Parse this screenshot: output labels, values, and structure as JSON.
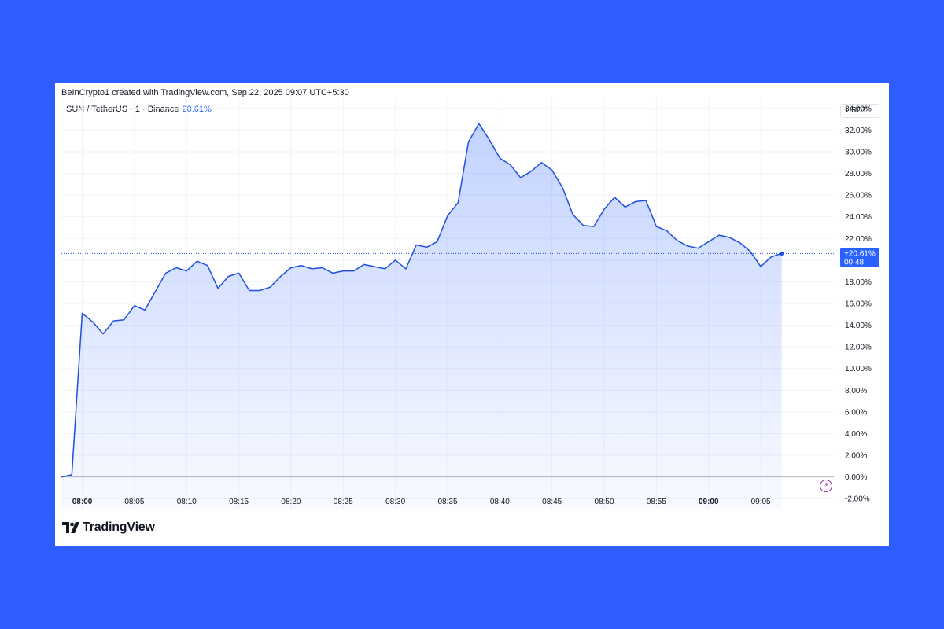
{
  "header": {
    "credit": "BeInCrypto1 created with TradingView.com, Sep 22, 2025 09:07 UTC+5:30",
    "symbol": "SUN / TetherUS · 1 · Binance",
    "change": "20.61%"
  },
  "price_axis": {
    "currency": "USDT"
  },
  "last_value": {
    "label": "+20.61%",
    "countdown": "00:48"
  },
  "footer": {
    "brand": "TradingView"
  },
  "colors": {
    "background": "#2e5eff",
    "line": "#1d4fe0",
    "fill": "#2962ff",
    "badge": "#2962ff",
    "zero_line": "#b2b5be",
    "grid": "#f0f3fa"
  },
  "icons": {
    "lightning": "lightning-icon",
    "logo": "tradingview-logo-icon"
  },
  "chart_data": {
    "type": "area",
    "ylabel": "",
    "ylim": [
      -3,
      35
    ],
    "y_ticks": [
      34,
      32,
      30,
      28,
      26,
      24,
      22,
      20,
      18,
      16,
      14,
      12,
      10,
      8,
      6,
      4,
      2,
      0,
      -2
    ],
    "y_tick_labels": [
      "34.00%",
      "32.00%",
      "30.00%",
      "28.00%",
      "26.00%",
      "24.00%",
      "22.00%",
      "20.00%",
      "18.00%",
      "16.00%",
      "14.00%",
      "12.00%",
      "10.00%",
      "8.00%",
      "6.00%",
      "4.00%",
      "2.00%",
      "0.00%",
      "-2.00%"
    ],
    "x_ticks": [
      {
        "minute": 0,
        "label": "08:00",
        "bold": true
      },
      {
        "minute": 5,
        "label": "08:05",
        "bold": false
      },
      {
        "minute": 10,
        "label": "08:10",
        "bold": false
      },
      {
        "minute": 15,
        "label": "08:15",
        "bold": false
      },
      {
        "minute": 20,
        "label": "08:20",
        "bold": false
      },
      {
        "minute": 25,
        "label": "08:25",
        "bold": false
      },
      {
        "minute": 30,
        "label": "08:30",
        "bold": false
      },
      {
        "minute": 35,
        "label": "08:35",
        "bold": false
      },
      {
        "minute": 40,
        "label": "08:40",
        "bold": false
      },
      {
        "minute": 45,
        "label": "08:45",
        "bold": false
      },
      {
        "minute": 50,
        "label": "08:50",
        "bold": false
      },
      {
        "minute": 55,
        "label": "08:55",
        "bold": false
      },
      {
        "minute": 60,
        "label": "09:00",
        "bold": true
      },
      {
        "minute": 65,
        "label": "09:05",
        "bold": false
      }
    ],
    "x_range": [
      -2,
      72
    ],
    "last_value": 20.61,
    "series": [
      {
        "x": [
          -2,
          -1,
          0,
          1,
          2,
          3,
          4,
          5,
          6,
          7,
          8,
          9,
          10,
          11,
          12,
          13,
          14,
          15,
          16,
          17,
          18,
          19,
          20,
          21,
          22,
          23,
          24,
          25,
          26,
          27,
          28,
          29,
          30,
          31,
          32,
          33,
          34,
          35,
          36,
          37,
          38,
          39,
          40,
          41,
          42,
          43,
          44,
          45,
          46,
          47,
          48,
          49,
          50,
          51,
          52,
          53,
          54,
          55,
          56,
          57,
          58,
          59,
          60,
          61,
          62,
          63,
          64,
          65,
          66,
          67
        ],
        "values": [
          0.0,
          0.2,
          15.1,
          14.3,
          13.2,
          14.4,
          14.5,
          15.8,
          15.4,
          17.1,
          18.8,
          19.3,
          19.0,
          19.9,
          19.5,
          17.4,
          18.5,
          18.8,
          17.2,
          17.2,
          17.5,
          18.5,
          19.3,
          19.5,
          19.2,
          19.3,
          18.8,
          19.0,
          19.0,
          19.6,
          19.4,
          19.2,
          20.0,
          19.2,
          21.4,
          21.2,
          21.7,
          24.1,
          25.3,
          30.9,
          32.6,
          31.1,
          29.4,
          28.8,
          27.6,
          28.2,
          29.0,
          28.3,
          26.7,
          24.2,
          23.2,
          23.1,
          24.7,
          25.8,
          24.9,
          25.4,
          25.5,
          23.1,
          22.7,
          21.8,
          21.3,
          21.1,
          21.7,
          22.3,
          22.1,
          21.6,
          20.8,
          19.4,
          20.3,
          20.61
        ]
      }
    ]
  }
}
